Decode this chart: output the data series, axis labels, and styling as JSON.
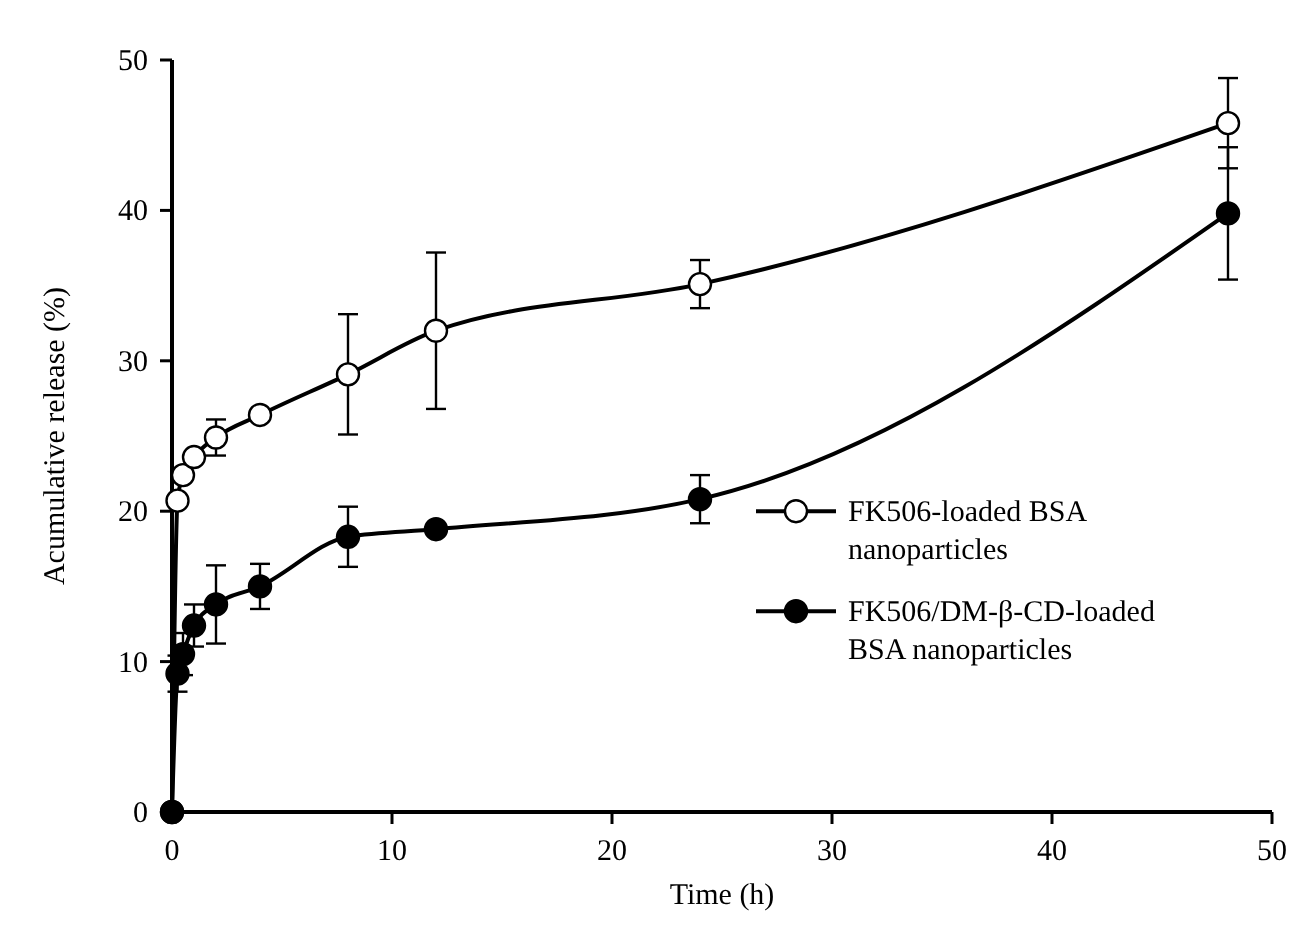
{
  "chart_data": {
    "type": "line",
    "xlabel": "Time (h)",
    "ylabel": "Acumulative release (%)",
    "xlim": [
      0,
      50
    ],
    "xticks": [
      0,
      10,
      20,
      30,
      40,
      50
    ],
    "ylim": [
      0,
      50
    ],
    "yticks": [
      0,
      10,
      20,
      30,
      40,
      50
    ],
    "marker": "circle",
    "legend": "right",
    "grid": false,
    "series": [
      {
        "name": "FK506-loaded BSA nanoparticles",
        "color": "#000000",
        "x": [
          0,
          0.25,
          0.5,
          1,
          2,
          4,
          8,
          12,
          24,
          48
        ],
        "values": [
          0,
          20.7,
          22.4,
          23.6,
          24.9,
          26.4,
          29.1,
          32,
          35.1,
          45.8
        ],
        "errors": [
          null,
          null,
          null,
          null,
          1.2,
          null,
          4,
          5.2,
          1.6,
          3
        ]
      },
      {
        "name": "FK506/DM-β-CD-loaded BSA nanoparticles",
        "color": "#000000",
        "x": [
          0,
          0.25,
          0.5,
          1,
          2,
          4,
          8,
          12,
          24,
          48
        ],
        "values": [
          0,
          9.2,
          10.5,
          12.4,
          13.8,
          15,
          18.3,
          18.8,
          20.8,
          39.8
        ],
        "errors": [
          null,
          1.2,
          1.4,
          1.4,
          2.6,
          1.5,
          2,
          null,
          1.6,
          4.4
        ]
      }
    ]
  }
}
